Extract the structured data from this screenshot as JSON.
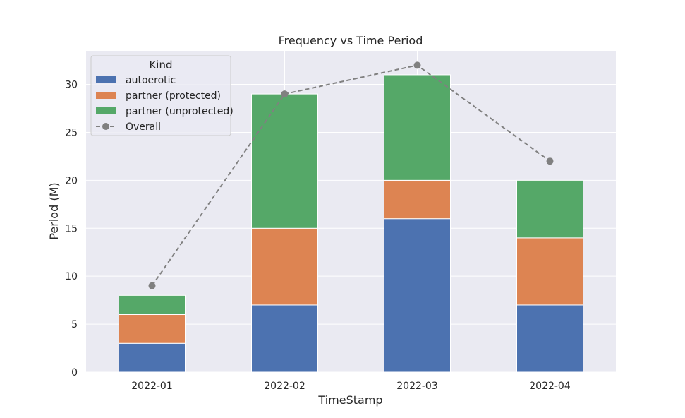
{
  "chart_data": {
    "type": "bar",
    "stacked": true,
    "title": "Frequency vs Time Period",
    "xlabel": "TimeStamp",
    "ylabel": "Period (M)",
    "categories": [
      "2022-01",
      "2022-02",
      "2022-03",
      "2022-04"
    ],
    "ylim": [
      0,
      33.5
    ],
    "yticks": [
      0,
      5,
      10,
      15,
      20,
      25,
      30
    ],
    "grid": true,
    "legend": {
      "title": "Kind",
      "placement": "top-left"
    },
    "series": [
      {
        "name": "autoerotic",
        "type": "bar",
        "color": "#4c72b0",
        "values": [
          3,
          7,
          16,
          7
        ]
      },
      {
        "name": "partner (protected)",
        "type": "bar",
        "color": "#dd8452",
        "values": [
          3,
          8,
          4,
          7
        ]
      },
      {
        "name": "partner (unprotected)",
        "type": "bar",
        "color": "#55a868",
        "values": [
          2,
          14,
          11,
          6
        ]
      },
      {
        "name": "Overall",
        "type": "line",
        "style": "dashed",
        "marker": "circle",
        "color": "#808080",
        "values": [
          9,
          29,
          32,
          22
        ]
      }
    ]
  }
}
